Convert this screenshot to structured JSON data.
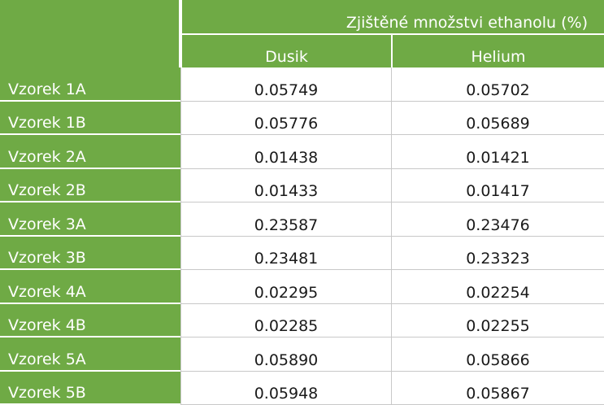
{
  "table": {
    "group_header": "Zjištěné množstvi ethanolu (%)",
    "columns": [
      "Dusik",
      "Helium"
    ],
    "rows": [
      [
        "Vzorek 1A",
        "0.05749",
        "0.05702"
      ],
      [
        "Vzorek 1B",
        "0.05776",
        "0.05689"
      ],
      [
        "Vzorek 2A",
        "0.01438",
        "0.01421"
      ],
      [
        "Vzorek 2B",
        "0.01433",
        "0.01417"
      ],
      [
        "Vzorek 3A",
        "0.23587",
        "0.23476"
      ],
      [
        "Vzorek 3B",
        "0.23481",
        "0.23323"
      ],
      [
        "Vzorek 4A",
        "0.02295",
        "0.02254"
      ],
      [
        "Vzorek 4B",
        "0.02285",
        "0.02255"
      ],
      [
        "Vzorek 5A",
        "0.05890",
        "0.05866"
      ],
      [
        "Vzorek 5B",
        "0.05948",
        "0.05867"
      ]
    ]
  }
}
